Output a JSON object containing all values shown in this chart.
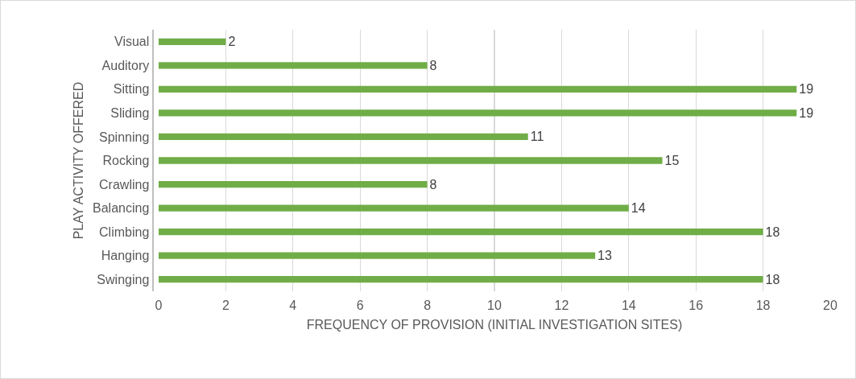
{
  "chart_data": {
    "type": "bar",
    "orientation": "horizontal",
    "xlabel": "FREQUENCY OF PROVISION (INITIAL INVESTIGATION SITES)",
    "ylabel": "PLAY ACTIVITY OFFERED",
    "categories": [
      "Visual",
      "Auditory",
      "Sitting",
      "Sliding",
      "Spinning",
      "Rocking",
      "Crawling",
      "Balancing",
      "Climbing",
      "Hanging",
      "Swinging"
    ],
    "values": [
      2,
      8,
      19,
      19,
      11,
      15,
      8,
      14,
      18,
      13,
      18
    ],
    "color": "#70ad47",
    "xlim": [
      0,
      20
    ],
    "xticks": [
      0,
      2,
      4,
      6,
      8,
      10,
      12,
      14,
      16,
      18,
      20
    ],
    "grid": "x",
    "data_labels": true
  }
}
